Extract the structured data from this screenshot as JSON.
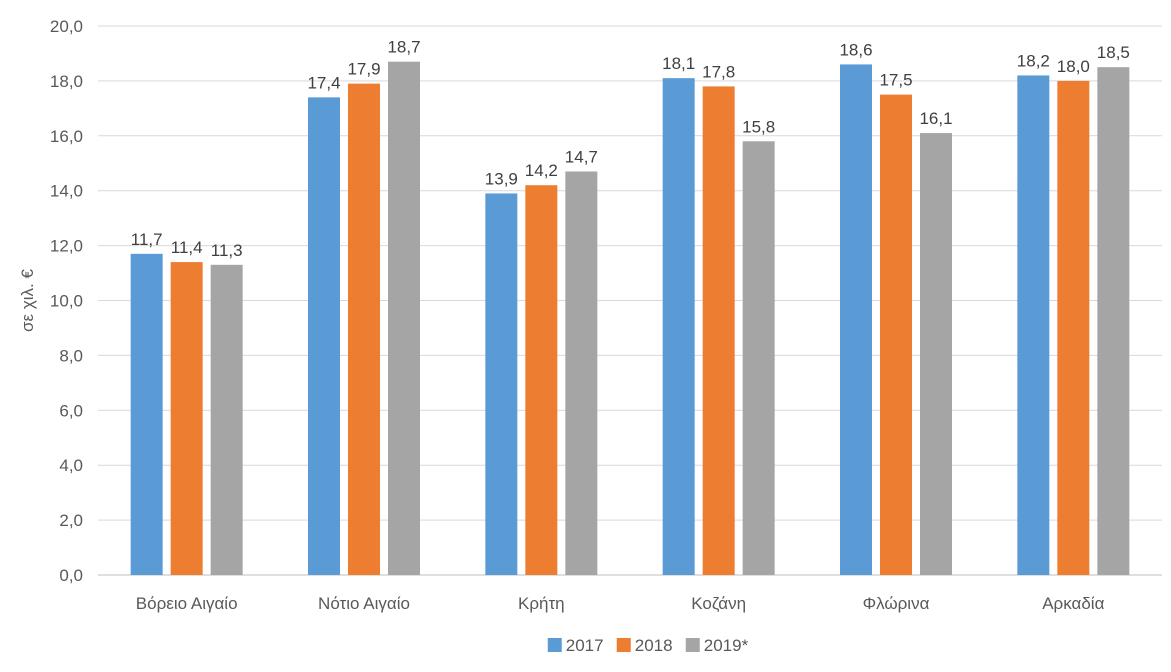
{
  "chart_data": {
    "type": "bar",
    "categories": [
      "Βόρειο Αιγαίο",
      "Νότιο Αιγαίο",
      "Κρήτη",
      "Κοζάνη",
      "Φλώρινα",
      "Αρκαδία"
    ],
    "series": [
      {
        "name": "2017",
        "color": "#5B9BD5",
        "values": [
          11.7,
          17.4,
          13.9,
          18.1,
          18.6,
          18.2
        ],
        "labels": [
          "11,7",
          "17,4",
          "13,9",
          "18,1",
          "18,6",
          "18,2"
        ]
      },
      {
        "name": "2018",
        "color": "#ED7D31",
        "values": [
          11.4,
          17.9,
          14.2,
          17.8,
          17.5,
          18.0
        ],
        "labels": [
          "11,4",
          "17,9",
          "14,2",
          "17,8",
          "17,5",
          "18,0"
        ]
      },
      {
        "name": "2019*",
        "color": "#A5A5A5",
        "values": [
          11.3,
          18.7,
          14.7,
          15.8,
          16.1,
          18.5
        ],
        "labels": [
          "11,3",
          "18,7",
          "14,7",
          "15,8",
          "16,1",
          "18,5"
        ]
      }
    ],
    "ylabel": "σε χιλ. €",
    "xlabel": "",
    "ylim": [
      0,
      20
    ],
    "yticks": [
      0,
      2,
      4,
      6,
      8,
      10,
      12,
      14,
      16,
      18,
      20
    ],
    "ytick_labels": [
      "0,0",
      "2,0",
      "4,0",
      "6,0",
      "8,0",
      "10,0",
      "12,0",
      "14,0",
      "16,0",
      "18,0",
      "20,0"
    ],
    "grid": true,
    "legend_position": "bottom"
  }
}
